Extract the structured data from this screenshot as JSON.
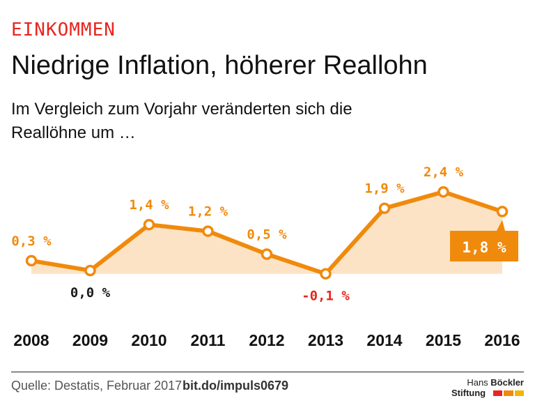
{
  "header": {
    "kicker": "EINKOMMEN",
    "title": "Niedrige Inflation, höherer Reallohn",
    "subtitle": "Im Vergleich zum Vorjahr veränderten sich die Reallöhne um …"
  },
  "chart_data": {
    "type": "area",
    "categories": [
      "2008",
      "2009",
      "2010",
      "2011",
      "2012",
      "2013",
      "2014",
      "2015",
      "2016"
    ],
    "series": [
      {
        "values": [
          0.3,
          0.0,
          1.4,
          1.2,
          0.5,
          -0.1,
          1.9,
          2.4,
          1.8
        ],
        "labels": [
          "0,3 %",
          "0,0 %",
          "1,4 %",
          "1,2 %",
          "0,5 %",
          "-0,1 %",
          "1,9 %",
          "2,4 %",
          "1,8 %"
        ]
      }
    ],
    "highlight_index": 8,
    "grid": false,
    "colors": {
      "line": "#f08a0c",
      "fill": "#fde3c6",
      "label_positive": "#f08a0c",
      "label_zero": "#1a1a1a",
      "label_negative": "#e8251f",
      "highlight_bg": "#f08a0c",
      "highlight_text": "#ffffff"
    }
  },
  "footer": {
    "source": "Quelle: Destatis, Februar 2017",
    "link": "bit.do/impuls0679",
    "logo": {
      "line1_regular": "Hans ",
      "line1_bold": "Böckler",
      "line2": "Stiftung"
    },
    "logo_colors": [
      "#e8251f",
      "#f08a0c",
      "#f5b400"
    ]
  }
}
